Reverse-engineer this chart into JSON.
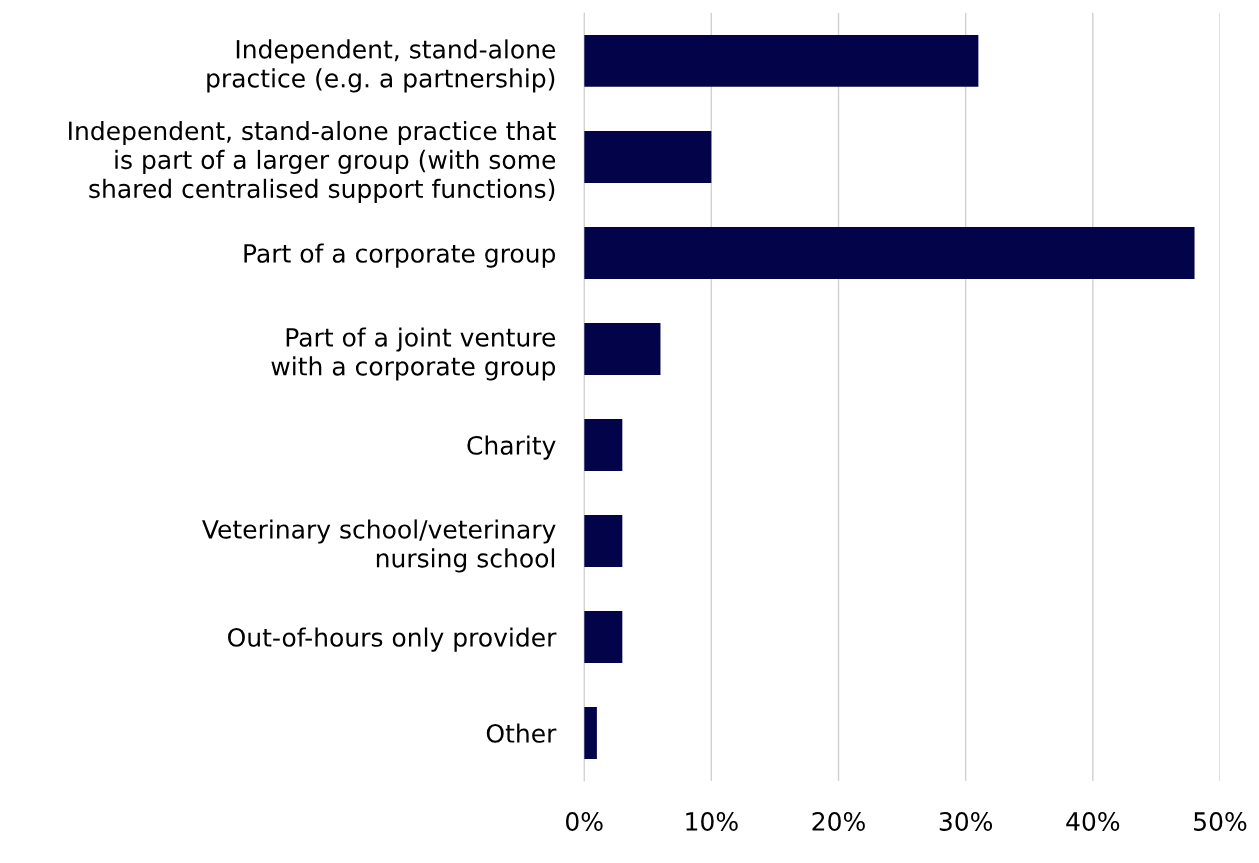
{
  "chart_data": {
    "type": "bar",
    "orientation": "horizontal",
    "categories": [
      "Independent, stand-alone\npractice (e.g. a partnership)",
      "Independent, stand-alone practice that\nis part of a larger group (with some\nshared centralised support functions)",
      "Part of a corporate group",
      "Part of a joint venture\nwith a corporate group",
      "Charity",
      "Veterinary school/veterinary\nnursing school",
      "Out-of-hours only provider",
      "Other"
    ],
    "values": [
      31,
      10,
      48,
      6,
      3,
      3,
      3,
      1
    ],
    "color": "#03034a",
    "xlim": [
      0,
      50
    ],
    "xticks": [
      {
        "value": 0,
        "label": "0%"
      },
      {
        "value": 10,
        "label": "10%"
      },
      {
        "value": 20,
        "label": "20%"
      },
      {
        "value": 30,
        "label": "30%"
      },
      {
        "value": 40,
        "label": "40%"
      },
      {
        "value": 50,
        "label": "50%"
      }
    ],
    "grid": "x"
  }
}
